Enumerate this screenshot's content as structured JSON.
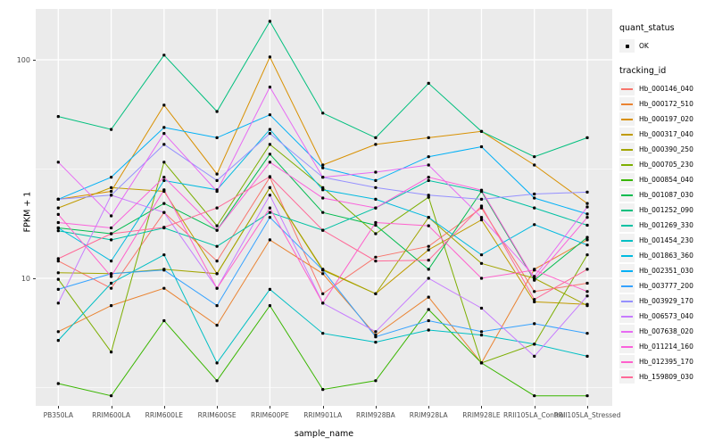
{
  "y_axis": {
    "title": "FPKM + 1",
    "ticks": [
      {
        "label": "100",
        "value": 100
      },
      {
        "label": "10",
        "value": 10
      }
    ]
  },
  "x_axis": {
    "title": "sample_name"
  },
  "legend": {
    "quant_status_title": "quant_status",
    "quant_status_items": [
      {
        "label": "OK"
      }
    ],
    "tracking_id_title": "tracking_id"
  },
  "style": {
    "panel_bg": "#EBEBEB",
    "grid_major": "#FFFFFF",
    "grid_minor": "#F7F7F7",
    "point_color": "#000000",
    "tick_text_color": "#4D4D4D"
  },
  "chart_data": {
    "type": "line",
    "title": "",
    "xlabel": "sample_name",
    "ylabel": "FPKM + 1",
    "yscale": "log10",
    "ylim": [
      2.5,
      175
    ],
    "yticks": [
      10,
      100
    ],
    "grid": true,
    "legend_position": "right",
    "quant_status": "OK",
    "x": [
      "PB350LA",
      "RRIM600LA",
      "RRIM600LE",
      "RRIM600SE",
      "RRIM600PE",
      "RRIM901LA",
      "RRIM928BA",
      "RRIM928LA",
      "RRIM928LE",
      "RRII105LA_Control",
      "RRII105LA_Stressed"
    ],
    "series": [
      {
        "name": "Hb_000146_040",
        "color": "#F8766D",
        "values": [
          12,
          9,
          20,
          12,
          29,
          8.5,
          12.5,
          14,
          21,
          8.7,
          9.5
        ]
      },
      {
        "name": "Hb_000172_510",
        "color": "#EA8331",
        "values": [
          5.7,
          7.5,
          9,
          6.1,
          15,
          10.5,
          5.5,
          8.2,
          4.1,
          11,
          15
        ]
      },
      {
        "name": "Hb_000197_020",
        "color": "#D89000",
        "values": [
          23,
          25,
          62,
          30,
          103,
          33,
          41,
          44,
          47,
          33,
          22
        ]
      },
      {
        "name": "Hb_000317_040",
        "color": "#C09B00",
        "values": [
          21,
          26,
          25,
          10.5,
          26,
          11,
          8.5,
          13.5,
          18.5,
          7.8,
          7.6
        ]
      },
      {
        "name": "Hb_000390_250",
        "color": "#A3A500",
        "values": [
          10.6,
          10.5,
          11,
          10.5,
          26,
          10.9,
          8.5,
          19,
          11.7,
          10,
          7.5
        ]
      },
      {
        "name": "Hb_000705_230",
        "color": "#7CAE00",
        "values": [
          9.9,
          4.6,
          34,
          17.4,
          41,
          26,
          16,
          23.5,
          4.1,
          5,
          12.8
        ]
      },
      {
        "name": "Hb_000854_040",
        "color": "#39B600",
        "values": [
          3.3,
          2.9,
          6.4,
          3.4,
          7.5,
          3.1,
          3.4,
          7.2,
          4.1,
          2.9,
          2.9
        ]
      },
      {
        "name": "Hb_001087_030",
        "color": "#00BB4E",
        "values": [
          17,
          16,
          22,
          16.6,
          37,
          20,
          17.5,
          11,
          25,
          9.8,
          15.4
        ]
      },
      {
        "name": "Hb_001252_090",
        "color": "#00BF7D",
        "values": [
          55,
          48,
          105,
          58,
          150,
          57,
          44,
          78,
          47,
          36,
          44
        ]
      },
      {
        "name": "Hb_001269_330",
        "color": "#00C1A3",
        "values": [
          16.5,
          15,
          17,
          14,
          20,
          16.6,
          21,
          28,
          25,
          21,
          17.5
        ]
      },
      {
        "name": "Hb_001454_230",
        "color": "#00BFC4",
        "values": [
          5.2,
          9.5,
          12.8,
          4.1,
          8.9,
          5.6,
          5.1,
          5.8,
          5.5,
          5,
          4.4
        ]
      },
      {
        "name": "Hb_001863_360",
        "color": "#00BAE0",
        "values": [
          17,
          12,
          28,
          25.4,
          48,
          25.4,
          23,
          19,
          12.8,
          17.6,
          14.2
        ]
      },
      {
        "name": "Hb_002351_030",
        "color": "#00B0F6",
        "values": [
          23,
          29,
          49,
          44,
          56,
          32,
          28,
          36,
          40,
          23.3,
          19.7
        ]
      },
      {
        "name": "Hb_003777_200",
        "color": "#35A2FF",
        "values": [
          8.9,
          10.5,
          10.9,
          7.5,
          19,
          10.9,
          5.4,
          6.4,
          5.7,
          6.2,
          5.6
        ]
      },
      {
        "name": "Hb_003929_170",
        "color": "#9590FF",
        "values": [
          23,
          24,
          41,
          28,
          46,
          29,
          26,
          24,
          23,
          24.3,
          24.8
        ]
      },
      {
        "name": "Hb_006573_040",
        "color": "#C77CFF",
        "values": [
          7.7,
          24,
          20,
          9,
          24,
          7.7,
          5.7,
          10,
          7.3,
          4.4,
          8.3
        ]
      },
      {
        "name": "Hb_007638_020",
        "color": "#E76BF3",
        "values": [
          34,
          19.3,
          46,
          25,
          75,
          29,
          30.6,
          33,
          19,
          10.2,
          21.2
        ]
      },
      {
        "name": "Hb_011214_160",
        "color": "#FA62DB",
        "values": [
          18,
          17,
          29,
          16.6,
          34,
          23.3,
          21,
          29,
          25.3,
          9.9,
          19
        ]
      },
      {
        "name": "Hb_012395_170",
        "color": "#FF61CC",
        "values": [
          19.6,
          10.2,
          25.4,
          9,
          21,
          7.7,
          18,
          17.4,
          10,
          10.9,
          8.7
        ]
      },
      {
        "name": "Hb_159809_030",
        "color": "#FF6A98",
        "values": [
          12.3,
          16,
          17.1,
          21,
          29.2,
          16.6,
          12,
          12.1,
          21.4,
          8,
          11
        ]
      }
    ]
  }
}
